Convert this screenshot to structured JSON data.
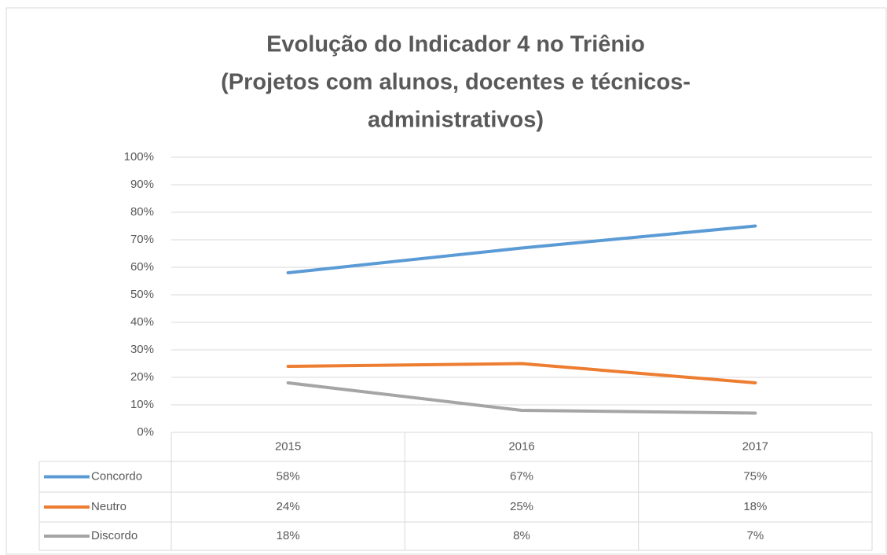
{
  "chart_data": {
    "type": "line",
    "title": [
      "Evolução do Indicador 4 no Triênio",
      "(Projetos com alunos, docentes e técnicos-",
      "administrativos)"
    ],
    "categories": [
      "2015",
      "2016",
      "2017"
    ],
    "series": [
      {
        "name": "Concordo",
        "color": "#5b9bd5",
        "values": [
          58,
          67,
          75
        ],
        "value_labels": [
          "58%",
          "67%",
          "75%"
        ]
      },
      {
        "name": "Neutro",
        "color": "#ed7d31",
        "values": [
          24,
          25,
          18
        ],
        "value_labels": [
          "24%",
          "25%",
          "18%"
        ]
      },
      {
        "name": "Discordo",
        "color": "#a5a5a5",
        "values": [
          18,
          8,
          7
        ],
        "value_labels": [
          "18%",
          "8%",
          "7%"
        ]
      }
    ],
    "ylim": [
      0,
      100
    ],
    "yticks": [
      {
        "value": 0,
        "label": "0%"
      },
      {
        "value": 10,
        "label": "10%"
      },
      {
        "value": 20,
        "label": "20%"
      },
      {
        "value": 30,
        "label": "30%"
      },
      {
        "value": 40,
        "label": "40%"
      },
      {
        "value": 50,
        "label": "50%"
      },
      {
        "value": 60,
        "label": "60%"
      },
      {
        "value": 70,
        "label": "70%"
      },
      {
        "value": 80,
        "label": "80%"
      },
      {
        "value": 90,
        "label": "90%"
      },
      {
        "value": 100,
        "label": "100%"
      }
    ],
    "grid": true
  }
}
